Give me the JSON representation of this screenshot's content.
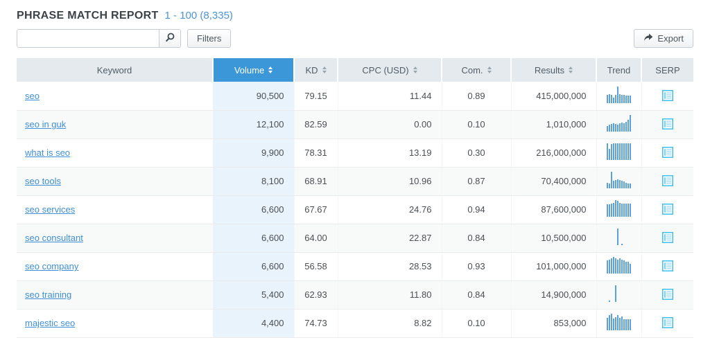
{
  "header": {
    "title": "PHRASE MATCH REPORT",
    "range": "1 - 100 (8,335)"
  },
  "toolbar": {
    "search_value": "",
    "search_placeholder": "",
    "filters_label": "Filters",
    "export_label": "Export"
  },
  "colors": {
    "sort_active_header": "#3b97d8",
    "link_blue": "#3e8fd5",
    "sparkline_blue": "#5ba1d8",
    "serp_icon_blue": "#3fc0ef",
    "volume_column_tint": "#e9f3fb"
  },
  "table": {
    "columns": [
      {
        "key": "keyword",
        "label": "Keyword",
        "sortable": false,
        "active": false
      },
      {
        "key": "volume",
        "label": "Volume",
        "sortable": true,
        "active": true
      },
      {
        "key": "kd",
        "label": "KD",
        "sortable": true,
        "active": false
      },
      {
        "key": "cpc",
        "label": "CPC (USD)",
        "sortable": true,
        "active": false
      },
      {
        "key": "com",
        "label": "Com.",
        "sortable": true,
        "active": false
      },
      {
        "key": "results",
        "label": "Results",
        "sortable": true,
        "active": false
      },
      {
        "key": "trend",
        "label": "Trend",
        "sortable": false,
        "active": false
      },
      {
        "key": "serp",
        "label": "SERP",
        "sortable": false,
        "active": false
      }
    ],
    "rows": [
      {
        "keyword": "seo",
        "volume": "90,500",
        "kd": "79.15",
        "cpc": "11.44",
        "com": "0.89",
        "results": "415,000,000",
        "trend": [
          0.5,
          0.55,
          0.5,
          0.35,
          0.5,
          1.0,
          0.55,
          0.5,
          0.5,
          0.45,
          0.45,
          0.45
        ]
      },
      {
        "keyword": "seo in guk",
        "volume": "12,100",
        "kd": "82.59",
        "cpc": "0.00",
        "com": "0.10",
        "results": "1,010,000",
        "trend": [
          0.35,
          0.4,
          0.45,
          0.5,
          0.45,
          0.4,
          0.5,
          0.55,
          0.5,
          0.6,
          0.7,
          1.0
        ]
      },
      {
        "keyword": "what is seo",
        "volume": "9,900",
        "kd": "78.31",
        "cpc": "13.19",
        "com": "0.30",
        "results": "216,000,000",
        "trend": [
          1.0,
          0.65,
          0.95,
          1.0,
          1.0,
          1.0,
          1.0,
          1.0,
          1.0,
          1.0,
          1.0,
          1.0
        ]
      },
      {
        "keyword": "seo tools",
        "volume": "8,100",
        "kd": "68.91",
        "cpc": "10.96",
        "com": "0.87",
        "results": "70,400,000",
        "trend": [
          0.35,
          0.3,
          1.0,
          0.45,
          0.5,
          0.55,
          0.5,
          0.45,
          0.4,
          0.35,
          0.3,
          0.3
        ]
      },
      {
        "keyword": "seo services",
        "volume": "6,600",
        "kd": "67.67",
        "cpc": "24.76",
        "com": "0.94",
        "results": "87,600,000",
        "trend": [
          0.75,
          0.75,
          0.8,
          0.85,
          1.0,
          0.95,
          0.85,
          0.8,
          0.8,
          0.8,
          0.8,
          0.8
        ]
      },
      {
        "keyword": "seo consultant",
        "volume": "6,600",
        "kd": "64.00",
        "cpc": "22.87",
        "com": "0.84",
        "results": "10,500,000",
        "trend": [
          0,
          0,
          0,
          0,
          0,
          1.0,
          0,
          0.08,
          0,
          0,
          0,
          0
        ]
      },
      {
        "keyword": "seo company",
        "volume": "6,600",
        "kd": "56.58",
        "cpc": "28.53",
        "com": "0.93",
        "results": "101,000,000",
        "trend": [
          0.8,
          0.85,
          0.9,
          1.0,
          0.9,
          0.85,
          0.9,
          0.85,
          0.8,
          0.7,
          0.7,
          0.6
        ]
      },
      {
        "keyword": "seo training",
        "volume": "5,400",
        "kd": "62.93",
        "cpc": "11.80",
        "com": "0.84",
        "results": "14,900,000",
        "trend": [
          0,
          0.08,
          0,
          0,
          1.0,
          0,
          0,
          0,
          0,
          0,
          0,
          0
        ]
      },
      {
        "keyword": "majestic seo",
        "volume": "4,400",
        "kd": "74.73",
        "cpc": "8.82",
        "com": "0.10",
        "results": "853,000",
        "trend": [
          0.75,
          0.9,
          1.0,
          0.7,
          0.8,
          0.9,
          0.75,
          0.85,
          0.65,
          0.65,
          0.65,
          0.65
        ]
      }
    ]
  }
}
